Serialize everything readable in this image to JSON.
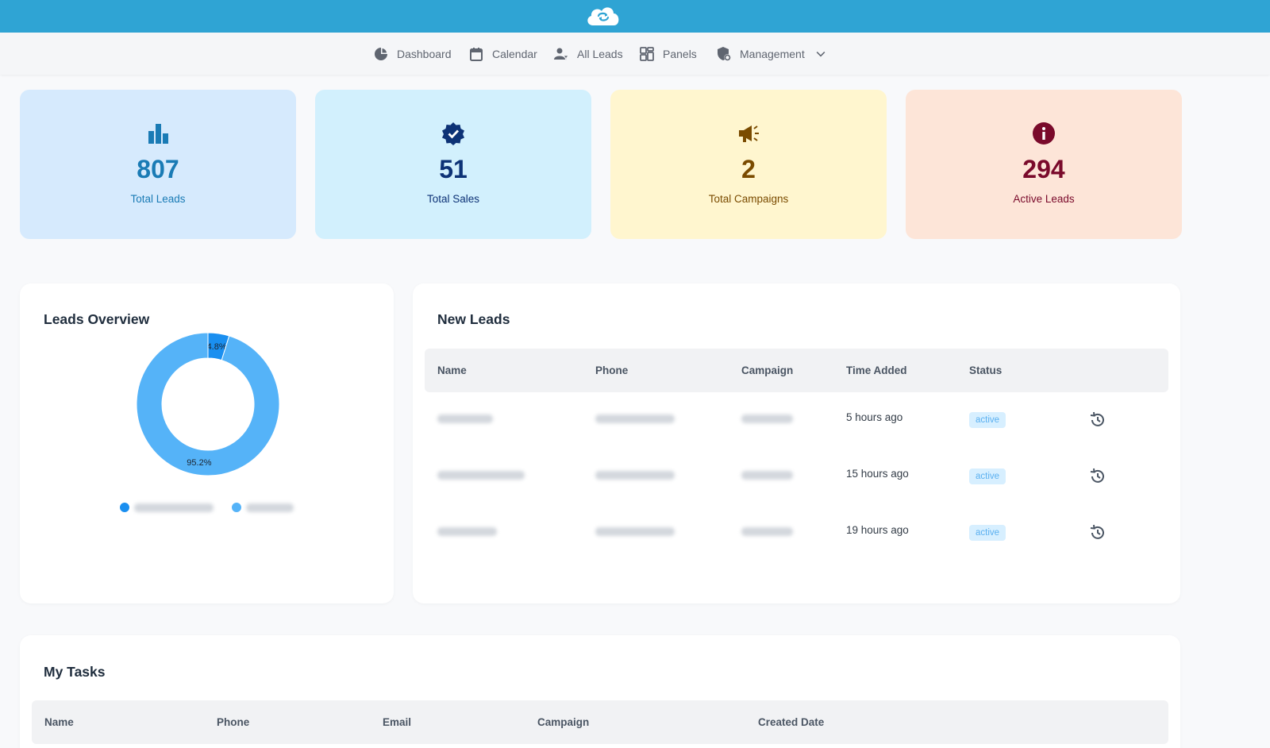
{
  "nav": {
    "items": [
      {
        "label": "Dashboard",
        "icon": "pie-chart-icon"
      },
      {
        "label": "Calendar",
        "icon": "calendar-icon"
      },
      {
        "label": "All Leads",
        "icon": "user-filter-icon"
      },
      {
        "label": "Panels",
        "icon": "panels-grid-icon"
      },
      {
        "label": "Management",
        "icon": "shield-gear-icon",
        "dropdown_icon": "chevron-down-icon"
      }
    ]
  },
  "stats": [
    {
      "value": "807",
      "label": "Total Leads",
      "icon": "bar-chart-icon",
      "bg": "#d6eafd",
      "color": "#1a7bb5"
    },
    {
      "value": "51",
      "label": "Total Sales",
      "icon": "verified-badge-icon",
      "bg": "#d2f0fd",
      "color": "#0d3276"
    },
    {
      "value": "2",
      "label": "Total Campaigns",
      "icon": "megaphone-icon",
      "bg": "#fff6cf",
      "color": "#7a4b00"
    },
    {
      "value": "294",
      "label": "Active Leads",
      "icon": "info-icon",
      "bg": "#fde5d8",
      "color": "#7a0a2b"
    }
  ],
  "leads_overview": {
    "title": "Leads Overview",
    "chart_data": {
      "type": "pie",
      "donut": true,
      "slices": [
        {
          "label": "4.8%",
          "value": 4.8,
          "color": "#1a8ff0"
        },
        {
          "label": "95.2%",
          "value": 95.2,
          "color": "#55b3f8"
        }
      ],
      "legend_placement": "bottom"
    }
  },
  "new_leads": {
    "title": "New Leads",
    "columns": [
      "Name",
      "Phone",
      "Campaign",
      "Time Added",
      "Status"
    ],
    "rows": [
      {
        "time_added": "5 hours ago",
        "status": "active"
      },
      {
        "time_added": "15 hours ago",
        "status": "active"
      },
      {
        "time_added": "19 hours ago",
        "status": "active"
      }
    ],
    "row_icon": "history-icon"
  },
  "my_tasks": {
    "title": "My Tasks",
    "columns": [
      "Name",
      "Phone",
      "Email",
      "Campaign",
      "Created Date"
    ]
  }
}
